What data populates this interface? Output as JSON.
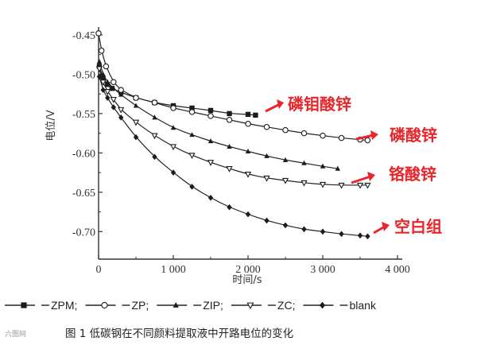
{
  "chart_data": {
    "type": "line",
    "xlabel": "时间/s",
    "ylabel": "电位/V",
    "xlim": [
      0,
      4000
    ],
    "ylim": [
      -0.735,
      -0.44
    ],
    "x_ticks": [
      0,
      1000,
      2000,
      3000,
      4000
    ],
    "x_tick_labels": [
      "0",
      "1 000",
      "2 000",
      "3 000",
      "4 000"
    ],
    "y_ticks": [
      -0.45,
      -0.5,
      -0.55,
      -0.6,
      -0.65,
      -0.7
    ],
    "y_tick_labels": [
      "-0.45",
      "-0.50",
      "-0.55",
      "-0.60",
      "-0.65",
      "-0.70"
    ],
    "grid": false,
    "legend_position": "bottom",
    "series": [
      {
        "name": "ZPM",
        "marker": "square",
        "x": [
          10,
          60,
          120,
          180,
          300,
          500,
          750,
          1000,
          1250,
          1500,
          1750,
          2000,
          2100
        ],
        "y": [
          -0.49,
          -0.505,
          -0.513,
          -0.518,
          -0.523,
          -0.53,
          -0.536,
          -0.54,
          -0.543,
          -0.546,
          -0.55,
          -0.551,
          -0.552
        ]
      },
      {
        "name": "ZP",
        "marker": "circle-open",
        "x": [
          0,
          40,
          100,
          200,
          300,
          500,
          750,
          1000,
          1250,
          1500,
          1750,
          2000,
          2250,
          2500,
          2750,
          3000,
          3250,
          3500,
          3600
        ],
        "y": [
          -0.448,
          -0.47,
          -0.49,
          -0.51,
          -0.52,
          -0.53,
          -0.536,
          -0.543,
          -0.548,
          -0.553,
          -0.558,
          -0.563,
          -0.567,
          -0.571,
          -0.575,
          -0.578,
          -0.581,
          -0.583,
          -0.584
        ]
      },
      {
        "name": "ZIP",
        "marker": "triangle",
        "x": [
          10,
          60,
          120,
          200,
          300,
          500,
          750,
          1000,
          1250,
          1500,
          1750,
          2000,
          2250,
          2500,
          2750,
          3000,
          3200
        ],
        "y": [
          -0.484,
          -0.5,
          -0.51,
          -0.518,
          -0.526,
          -0.54,
          -0.555,
          -0.568,
          -0.577,
          -0.585,
          -0.592,
          -0.598,
          -0.604,
          -0.609,
          -0.613,
          -0.617,
          -0.62
        ]
      },
      {
        "name": "ZC",
        "marker": "triangle-down-open",
        "x": [
          10,
          60,
          120,
          200,
          300,
          500,
          750,
          1000,
          1250,
          1500,
          1750,
          2000,
          2250,
          2500,
          2750,
          3000,
          3250,
          3500,
          3600
        ],
        "y": [
          -0.493,
          -0.51,
          -0.522,
          -0.532,
          -0.545,
          -0.561,
          -0.578,
          -0.592,
          -0.603,
          -0.612,
          -0.62,
          -0.627,
          -0.632,
          -0.635,
          -0.638,
          -0.64,
          -0.641,
          -0.641,
          -0.641
        ]
      },
      {
        "name": "blank",
        "marker": "diamond",
        "x": [
          10,
          60,
          120,
          200,
          300,
          500,
          750,
          1000,
          1250,
          1500,
          1750,
          2000,
          2250,
          2500,
          2750,
          3000,
          3250,
          3500,
          3600
        ],
        "y": [
          -0.503,
          -0.52,
          -0.53,
          -0.542,
          -0.555,
          -0.58,
          -0.605,
          -0.625,
          -0.643,
          -0.657,
          -0.669,
          -0.678,
          -0.686,
          -0.692,
          -0.697,
          -0.7,
          -0.703,
          -0.705,
          -0.706
        ]
      }
    ],
    "annotations": [
      "磷钼酸锌",
      "磷酸锌",
      "铬酸锌",
      "空白组"
    ],
    "annotation_color": "#e8262b",
    "caption": "图 1  低碳钢在不同颜料提取液中开路电位的变化"
  },
  "watermark": "六图网"
}
